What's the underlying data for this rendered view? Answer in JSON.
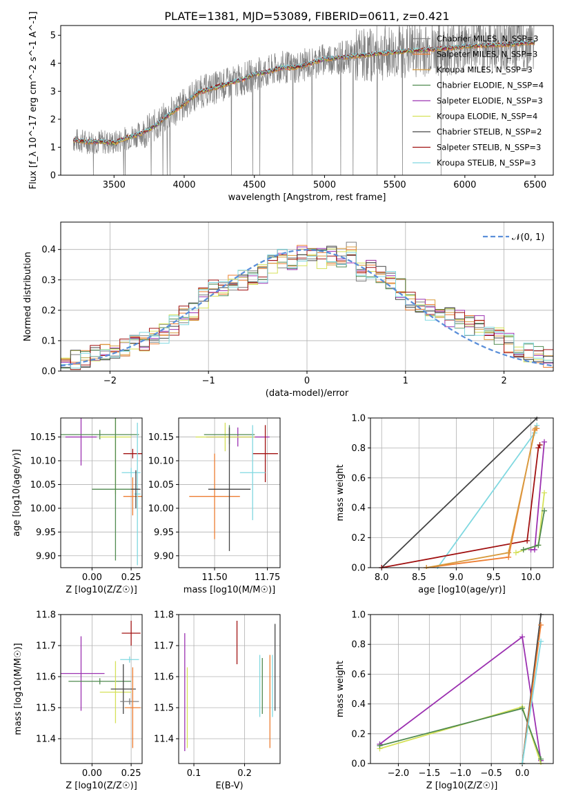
{
  "figure": {
    "title": "PLATE=1381, MJD=53089, FIBERID=0611, z=0.421"
  },
  "models": [
    {
      "name": "Chabrier MILES",
      "nssp": "3",
      "color": "#7f7f7f"
    },
    {
      "name": "Salpeter MILES",
      "nssp": "3",
      "color": "#ed7d31"
    },
    {
      "name": "Kroupa MILES",
      "nssp": "3",
      "color": "#d89b3e"
    },
    {
      "name": "Chabrier ELODIE",
      "nssp": "4",
      "color": "#4f8a4f"
    },
    {
      "name": "Salpeter ELODIE",
      "nssp": "3",
      "color": "#9b30b0"
    },
    {
      "name": "Kroupa ELODIE",
      "nssp": "4",
      "color": "#d4e157"
    },
    {
      "name": "Chabrier STELIB",
      "nssp": "2",
      "color": "#444444"
    },
    {
      "name": "Salpeter STELIB",
      "nssp": "3",
      "color": "#a01010"
    },
    {
      "name": "Kroupa STELIB",
      "nssp": "3",
      "color": "#7fd8e0"
    }
  ],
  "chart_data": [
    {
      "id": "spectrum",
      "type": "line",
      "title": "PLATE=1381, MJD=53089, FIBERID=0611, z=0.421",
      "xlabel": "wavelength [Angstrom, rest frame]",
      "ylabel": "Flux [f_λ 10^-17 erg cm^-2 s^-1 A^-1]",
      "xlim": [
        3120,
        6630
      ],
      "ylim": [
        0,
        5.35
      ],
      "xticks": [
        "3500",
        "4000",
        "4500",
        "5000",
        "5500",
        "6000",
        "6500"
      ],
      "yticks": [
        "0",
        "1",
        "2",
        "3",
        "4",
        "5"
      ],
      "legend_position": "right",
      "series": [
        {
          "name": "Chabrier MILES",
          "x": [
            3210,
            3300,
            3400,
            3500,
            3600,
            3700,
            3800,
            3900,
            4000,
            4100,
            4200,
            4300,
            4400,
            4500,
            4600,
            4700,
            4800,
            4900,
            5000,
            5200,
            5400,
            5600,
            5800,
            6000,
            6200,
            6400,
            6500
          ],
          "y": [
            1.25,
            1.2,
            1.2,
            1.15,
            1.35,
            1.5,
            1.8,
            2.2,
            2.55,
            2.95,
            3.1,
            3.25,
            3.4,
            3.6,
            3.7,
            3.85,
            3.85,
            4.0,
            4.15,
            4.25,
            4.35,
            4.45,
            4.5,
            4.6,
            4.65,
            4.7,
            4.75
          ]
        }
      ],
      "grid": false
    },
    {
      "id": "residuals",
      "type": "bar",
      "xlabel": "(data-model)/error",
      "ylabel": "Normed distribution",
      "xlim": [
        -2.5,
        2.5
      ],
      "ylim": [
        0,
        0.49
      ],
      "xticks": [
        "−2",
        "−1",
        "0",
        "1",
        "2"
      ],
      "yticks": [
        "0.0",
        "0.1",
        "0.2",
        "0.3",
        "0.4"
      ],
      "grid": true,
      "legend": "𝒩(0, 1)",
      "bin_centers": [
        -2.45,
        -2.35,
        -2.25,
        -2.15,
        -2.05,
        -1.95,
        -1.85,
        -1.75,
        -1.65,
        -1.55,
        -1.45,
        -1.35,
        -1.25,
        -1.15,
        -1.05,
        -0.95,
        -0.85,
        -0.75,
        -0.65,
        -0.55,
        -0.45,
        -0.35,
        -0.25,
        -0.15,
        -0.05,
        0.05,
        0.15,
        0.25,
        0.35,
        0.45,
        0.55,
        0.65,
        0.75,
        0.85,
        0.95,
        1.05,
        1.15,
        1.25,
        1.35,
        1.45,
        1.55,
        1.65,
        1.75,
        1.85,
        1.95,
        2.05,
        2.15,
        2.25,
        2.35,
        2.45
      ],
      "values": [
        0.03,
        0.035,
        0.04,
        0.05,
        0.055,
        0.06,
        0.075,
        0.09,
        0.1,
        0.12,
        0.125,
        0.15,
        0.18,
        0.2,
        0.24,
        0.27,
        0.26,
        0.3,
        0.3,
        0.31,
        0.32,
        0.35,
        0.37,
        0.36,
        0.38,
        0.39,
        0.37,
        0.38,
        0.37,
        0.39,
        0.33,
        0.34,
        0.31,
        0.3,
        0.27,
        0.23,
        0.22,
        0.2,
        0.2,
        0.18,
        0.17,
        0.15,
        0.15,
        0.13,
        0.11,
        0.09,
        0.07,
        0.06,
        0.05,
        0.045
      ],
      "normal_curve": {
        "mu": 0,
        "sigma": 1
      }
    },
    {
      "id": "age-vs-Z",
      "type": "scatter",
      "xlabel": "Z [log10(Z/Z☉)]",
      "ylabel": "age [log10(age/yr)]",
      "xlim": [
        -0.2,
        0.32
      ],
      "ylim": [
        9.875,
        10.19
      ],
      "xticks": [
        "0.00",
        "0.25"
      ],
      "yticks": [
        "9.90",
        "9.95",
        "10.00",
        "10.05",
        "10.10",
        "10.15"
      ],
      "grid": true,
      "points": [
        {
          "x": -0.07,
          "y": 10.15,
          "xerr": 0.1,
          "yerr": 0.06,
          "model": 4
        },
        {
          "x": 0.05,
          "y": 10.155,
          "xerr": 0.25,
          "yerr": 0.01,
          "model": 3
        },
        {
          "x": 0.15,
          "y": 10.15,
          "xerr": 0.1,
          "yerr": 0.12,
          "model": 5
        },
        {
          "x": 0.15,
          "y": 10.04,
          "xerr": 0.15,
          "yerr": 0.15,
          "model": 3
        },
        {
          "x": 0.26,
          "y": 10.115,
          "xerr": 0.06,
          "yerr": 0.01,
          "model": 7
        },
        {
          "x": 0.25,
          "y": 10.075,
          "xerr": 0.06,
          "yerr": 0.01,
          "model": 8
        },
        {
          "x": 0.26,
          "y": 10.025,
          "xerr": 0.06,
          "yerr": 0.04,
          "model": 1
        },
        {
          "x": 0.29,
          "y": 10.03,
          "xerr": 0.02,
          "yerr": 0.15,
          "model": 8
        },
        {
          "x": 0.28,
          "y": 10.04,
          "xerr": 0.03,
          "yerr": 0.04,
          "model": 6
        }
      ]
    },
    {
      "id": "age-vs-mass",
      "type": "scatter",
      "xlabel": "mass [log10(M/M☉)]",
      "ylabel": "",
      "xlim": [
        11.33,
        11.81
      ],
      "ylim": [
        9.875,
        10.19
      ],
      "xticks": [
        "11.50",
        "11.75"
      ],
      "yticks": [
        "9.90",
        "9.95",
        "10.00",
        "10.05",
        "10.10",
        "10.15"
      ],
      "grid": true,
      "points": [
        {
          "x": 11.61,
          "y": 10.15,
          "xerr": 0.15,
          "yerr": 0.02,
          "model": 4
        },
        {
          "x": 11.55,
          "y": 10.15,
          "xerr": 0.14,
          "yerr": 0.03,
          "model": 5
        },
        {
          "x": 11.57,
          "y": 10.155,
          "xerr": 0.12,
          "yerr": 0.02,
          "model": 3
        },
        {
          "x": 11.74,
          "y": 10.115,
          "xerr": 0.06,
          "yerr": 0.06,
          "model": 7
        },
        {
          "x": 11.68,
          "y": 10.075,
          "xerr": 0.06,
          "yerr": 0.1,
          "model": 8
        },
        {
          "x": 11.5,
          "y": 10.025,
          "xerr": 0.12,
          "yerr": 0.09,
          "model": 1
        },
        {
          "x": 11.57,
          "y": 10.04,
          "xerr": 0.1,
          "yerr": 0.13,
          "model": 6
        }
      ]
    },
    {
      "id": "weight-vs-age",
      "type": "line",
      "xlabel": "age [log10(age/yr)]",
      "ylabel": "mass weight",
      "xlim": [
        7.85,
        10.3
      ],
      "ylim": [
        0,
        1
      ],
      "xticks": [
        "8.0",
        "8.5",
        "9.0",
        "9.5",
        "10.0"
      ],
      "yticks": [
        "0.0",
        "0.2",
        "0.4",
        "0.6",
        "0.8",
        "1.0"
      ],
      "grid": true,
      "series": [
        {
          "model": 6,
          "x": [
            8.0,
            10.08
          ],
          "y": [
            0.0,
            1.0
          ]
        },
        {
          "model": 8,
          "x": [
            8.75,
            10.05,
            10.08
          ],
          "y": [
            0.0,
            0.9,
            0.95
          ]
        },
        {
          "model": 7,
          "x": [
            8.0,
            9.95,
            10.1,
            10.12
          ],
          "y": [
            0.0,
            0.18,
            0.8,
            0.82
          ]
        },
        {
          "model": 1,
          "x": [
            8.6,
            9.7,
            10.05,
            10.08
          ],
          "y": [
            0.0,
            0.07,
            0.92,
            0.93
          ]
        },
        {
          "model": 4,
          "x": [
            10.0,
            10.05,
            10.18
          ],
          "y": [
            0.12,
            0.12,
            0.84
          ]
        },
        {
          "model": 5,
          "x": [
            9.8,
            10.1,
            10.18
          ],
          "y": [
            0.1,
            0.15,
            0.5
          ]
        },
        {
          "model": 3,
          "x": [
            9.9,
            10.1,
            10.18
          ],
          "y": [
            0.12,
            0.15,
            0.38
          ]
        },
        {
          "model": 2,
          "x": [
            8.6,
            9.7,
            10.06
          ],
          "y": [
            0.0,
            0.1,
            0.93
          ]
        }
      ]
    },
    {
      "id": "mass-vs-Z",
      "type": "scatter",
      "xlabel": "Z [log10(Z/Z☉)]",
      "ylabel": "mass [log10(M/M☉)]",
      "xlim": [
        -0.2,
        0.32
      ],
      "ylim": [
        11.32,
        11.8
      ],
      "xticks": [
        "0.00",
        "0.25"
      ],
      "yticks": [
        "11.4",
        "11.5",
        "11.6",
        "11.7",
        "11.8"
      ],
      "grid": true,
      "points": [
        {
          "x": -0.07,
          "y": 11.61,
          "xerr": 0.15,
          "yerr": 0.12,
          "model": 4
        },
        {
          "x": 0.05,
          "y": 11.585,
          "xerr": 0.2,
          "yerr": 0.01,
          "model": 3
        },
        {
          "x": 0.15,
          "y": 11.55,
          "xerr": 0.1,
          "yerr": 0.1,
          "model": 5
        },
        {
          "x": 0.2,
          "y": 11.56,
          "xerr": 0.08,
          "yerr": 0.08,
          "model": 6
        },
        {
          "x": 0.25,
          "y": 11.74,
          "xerr": 0.06,
          "yerr": 0.04,
          "model": 7
        },
        {
          "x": 0.24,
          "y": 11.655,
          "xerr": 0.06,
          "yerr": 0.01,
          "model": 8
        },
        {
          "x": 0.24,
          "y": 11.52,
          "xerr": 0.06,
          "yerr": 0.01,
          "model": 0
        },
        {
          "x": 0.26,
          "y": 11.5,
          "xerr": 0.05,
          "yerr": 0.13,
          "model": 1
        }
      ]
    },
    {
      "id": "mass-vs-ebv",
      "type": "scatter",
      "xlabel": "E(B-V)",
      "ylabel": "",
      "xlim": [
        0.07,
        0.27
      ],
      "ylim": [
        11.32,
        11.8
      ],
      "xticks": [
        "0.1",
        "0.2"
      ],
      "yticks": [
        "11.4",
        "11.5",
        "11.6",
        "11.7",
        "11.8"
      ],
      "grid": true,
      "points": [
        {
          "x": 0.082,
          "y": 11.55,
          "yerr": 0.19,
          "model": 4
        },
        {
          "x": 0.087,
          "y": 11.5,
          "yerr": 0.13,
          "model": 5
        },
        {
          "x": 0.185,
          "y": 11.71,
          "yerr": 0.07,
          "model": 7
        },
        {
          "x": 0.23,
          "y": 11.57,
          "yerr": 0.1,
          "model": 8
        },
        {
          "x": 0.235,
          "y": 11.57,
          "yerr": 0.09,
          "model": 3
        },
        {
          "x": 0.25,
          "y": 11.52,
          "yerr": 0.15,
          "model": 1
        },
        {
          "x": 0.255,
          "y": 11.57,
          "yerr": 0.1,
          "model": 8
        },
        {
          "x": 0.26,
          "y": 11.63,
          "yerr": 0.14,
          "model": 6
        }
      ]
    },
    {
      "id": "weight-vs-Z",
      "type": "line",
      "xlabel": "Z [log10(Z/Z☉)]",
      "ylabel": "mass weight",
      "xlim": [
        -2.45,
        0.5
      ],
      "ylim": [
        0,
        1
      ],
      "xticks": [
        "−2.0",
        "−1.5",
        "−1.0",
        "−0.5",
        "0.0"
      ],
      "yticks": [
        "0.0",
        "0.2",
        "0.4",
        "0.6",
        "0.8",
        "1.0"
      ],
      "grid": true,
      "series": [
        {
          "model": 4,
          "x": [
            -2.3,
            0.0,
            0.3
          ],
          "y": [
            0.13,
            0.85,
            0.02
          ]
        },
        {
          "model": 5,
          "x": [
            -2.3,
            0.0,
            0.3
          ],
          "y": [
            0.1,
            0.38,
            0.0
          ]
        },
        {
          "model": 3,
          "x": [
            -2.3,
            0.0,
            0.3
          ],
          "y": [
            0.12,
            0.37,
            0.03
          ]
        },
        {
          "model": 6,
          "x": [
            0.0,
            0.3
          ],
          "y": [
            0.0,
            1.0
          ]
        },
        {
          "model": 1,
          "x": [
            0.0,
            0.3
          ],
          "y": [
            0.0,
            0.93
          ]
        },
        {
          "model": 8,
          "x": [
            0.0,
            0.3
          ],
          "y": [
            0.0,
            0.82
          ]
        }
      ]
    }
  ]
}
